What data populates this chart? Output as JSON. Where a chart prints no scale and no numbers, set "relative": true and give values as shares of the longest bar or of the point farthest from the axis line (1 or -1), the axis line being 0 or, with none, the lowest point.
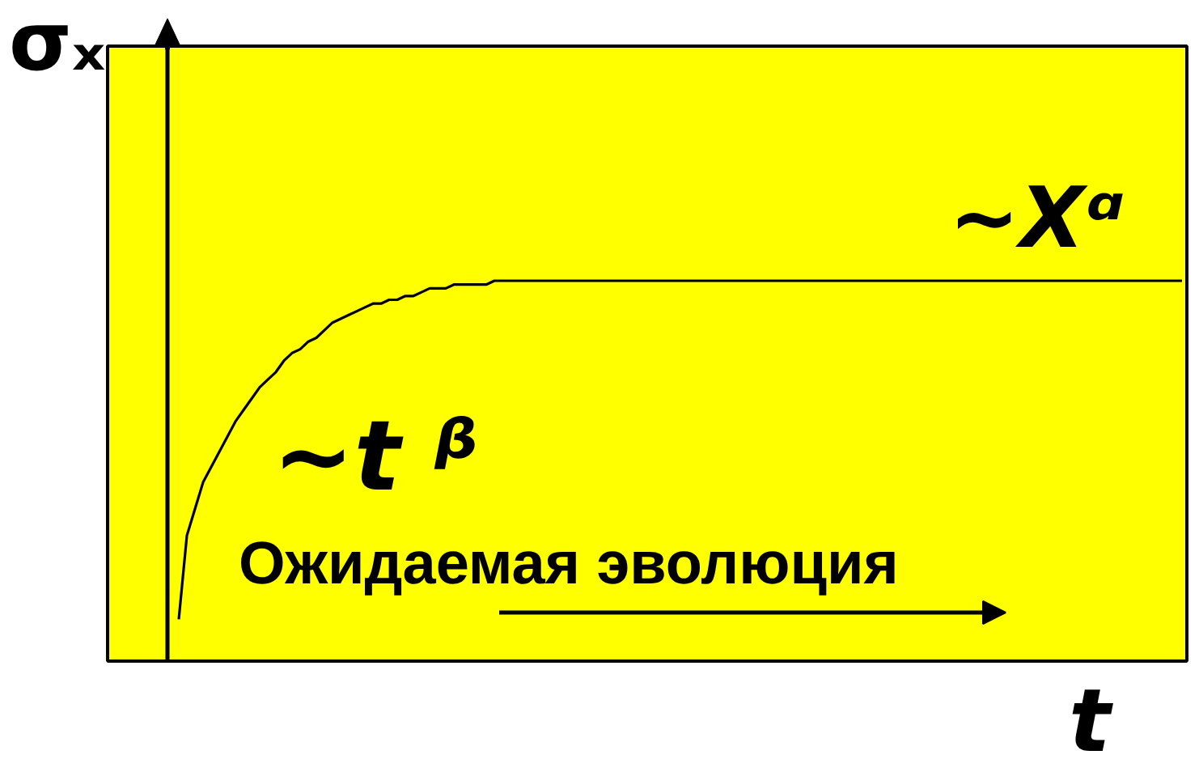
{
  "chart_data": {
    "type": "line",
    "relative": true,
    "tick_labels": false,
    "line_style": "solid",
    "xlabel": "t",
    "ylabel": "σₓ",
    "annotations": [
      "~t ᵝ",
      "~Xᵅ",
      "Ожидаемая эволюция"
    ],
    "categories": [
      null,
      null,
      null,
      null,
      null,
      null,
      null,
      null,
      null,
      null,
      null,
      null,
      null,
      null,
      null,
      null,
      null,
      null,
      null,
      null,
      null,
      null,
      null,
      null,
      null,
      null,
      null,
      null,
      null,
      null,
      null,
      null,
      null,
      null,
      null,
      null,
      null,
      null,
      null,
      null,
      null,
      null,
      null,
      null,
      null,
      null,
      null,
      null,
      null,
      null,
      null,
      null,
      null,
      null,
      null,
      null,
      null,
      null,
      null,
      null,
      null,
      null,
      null,
      null,
      null,
      null,
      null,
      null,
      null,
      null,
      null,
      null,
      null,
      null,
      null,
      null,
      null,
      null,
      null,
      null,
      null,
      null,
      null,
      null,
      null,
      null,
      null,
      null,
      null,
      null,
      null,
      null,
      null,
      null,
      null,
      null,
      null,
      null,
      null,
      null,
      null,
      null,
      null,
      null,
      null,
      null,
      null,
      null,
      null,
      null,
      null,
      null,
      null,
      null,
      null,
      null,
      null,
      null,
      null,
      null,
      null,
      null,
      null,
      null,
      null
    ],
    "series": [
      {
        "color": "#000000",
        "values": [
          0.11,
          0.33,
          0.4,
          0.47,
          0.51,
          0.55,
          0.59,
          0.63,
          0.66,
          0.69,
          0.72,
          0.74,
          0.76,
          0.79,
          0.81,
          0.82,
          0.84,
          0.85,
          0.87,
          0.89,
          0.9,
          0.91,
          0.92,
          0.93,
          0.94,
          0.94,
          0.95,
          0.95,
          0.96,
          0.96,
          0.97,
          0.98,
          0.98,
          0.98,
          0.99,
          0.99,
          0.99,
          0.99,
          0.99,
          1,
          1,
          1,
          1,
          1,
          1,
          1,
          1,
          1,
          1,
          1,
          1,
          1,
          1,
          1,
          1,
          1,
          1,
          1,
          1,
          1,
          1,
          1,
          1,
          1,
          1,
          1,
          1,
          1,
          1,
          1,
          1,
          1,
          1,
          1,
          1,
          1,
          1,
          1,
          1,
          1,
          1,
          1,
          1,
          1,
          1,
          1,
          1,
          1,
          1,
          1,
          1,
          1,
          1,
          1,
          1,
          1,
          1,
          1,
          1,
          1,
          1,
          1,
          1,
          1,
          1,
          1,
          1,
          1,
          1,
          1,
          1,
          1,
          1,
          1,
          1,
          1,
          1,
          1,
          1,
          1,
          1,
          1,
          1,
          1,
          1
        ]
      }
    ]
  }
}
